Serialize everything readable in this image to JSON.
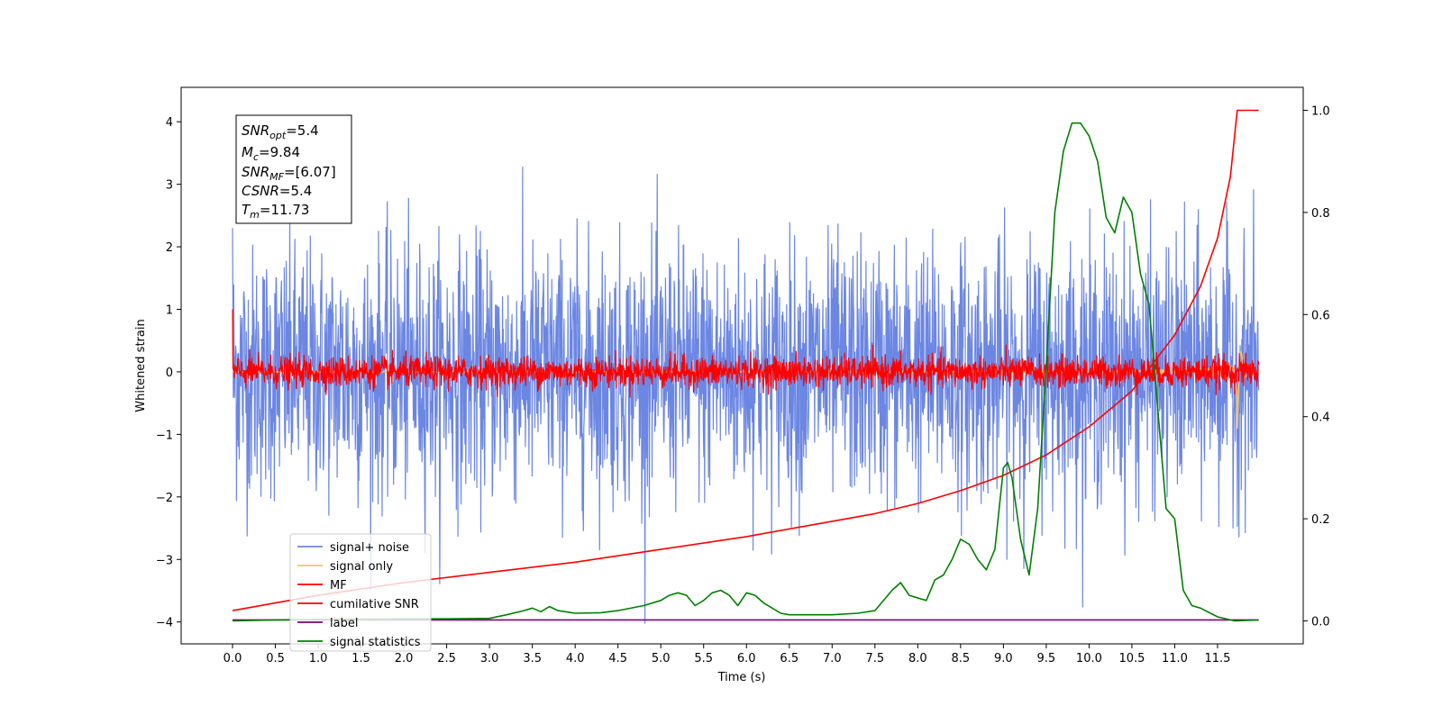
{
  "chart_data": {
    "type": "line",
    "xlabel": "Time (s)",
    "ylabel": "Whitened strain",
    "xlim": [
      -0.6,
      12.5
    ],
    "ylim": [
      -4.35,
      4.55
    ],
    "y2lim": [
      -0.045,
      1.045
    ],
    "xticks": [
      "0.0",
      "0.5",
      "1.0",
      "1.5",
      "2.0",
      "2.5",
      "3.0",
      "3.5",
      "4.0",
      "4.5",
      "5.0",
      "5.5",
      "6.0",
      "6.5",
      "7.0",
      "7.5",
      "8.0",
      "8.5",
      "9.0",
      "9.5",
      "10.0",
      "10.5",
      "11.0",
      "11.5"
    ],
    "yticks": [
      "−4",
      "−3",
      "−2",
      "−1",
      "0",
      "1",
      "2",
      "3",
      "4"
    ],
    "y2ticks": [
      "0.0",
      "0.2",
      "0.4",
      "0.6",
      "0.8",
      "1.0"
    ],
    "grid": false,
    "legend_position": "lower-left",
    "annotation": {
      "snr_opt": {
        "sym": "SNR",
        "sub": "opt",
        "val": "=5.4"
      },
      "mc": {
        "sym": "M",
        "sub": "c",
        "val": "=9.84"
      },
      "snr_mf": {
        "sym": "SNR",
        "sub": "MF",
        "val": "=[6.07]"
      },
      "csnr": {
        "sym": "CSNR",
        "sub": "",
        "val": "=5.4"
      },
      "tm": {
        "sym": "T",
        "sub": "m",
        "val": "=11.73"
      }
    },
    "series": [
      {
        "name": "signal+ noise",
        "color": "#6b86e3",
        "axis": "left",
        "kind": "noise",
        "std": 1.0,
        "x_range": [
          0.0,
          11.98
        ]
      },
      {
        "name": "signal only",
        "color": "#f5c26b",
        "axis": "left",
        "kind": "chirp",
        "x_range": [
          0.0,
          11.98
        ],
        "peak_time": 11.73,
        "peak_amplitude": 1.0
      },
      {
        "name": "MF",
        "color": "#ff0000",
        "axis": "left",
        "kind": "noise",
        "std": 0.12,
        "x_range": [
          0.0,
          11.98
        ]
      },
      {
        "name": "cumilative SNR",
        "color": "#ff0000",
        "axis": "right",
        "x": [
          0.0,
          1.0,
          2.0,
          3.0,
          4.0,
          5.0,
          6.0,
          7.0,
          7.5,
          8.0,
          8.5,
          9.0,
          9.5,
          10.0,
          10.5,
          11.0,
          11.3,
          11.5,
          11.65,
          11.73,
          11.98
        ],
        "values": [
          0.02,
          0.05,
          0.075,
          0.095,
          0.115,
          0.14,
          0.165,
          0.195,
          0.21,
          0.23,
          0.255,
          0.285,
          0.325,
          0.38,
          0.45,
          0.56,
          0.655,
          0.75,
          0.87,
          1.0,
          1.0
        ]
      },
      {
        "name": "label",
        "color": "#800080",
        "axis": "right",
        "x": [
          0.0,
          11.98
        ],
        "values": [
          0.002,
          0.002
        ]
      },
      {
        "name": "signal statistics",
        "color": "#008000",
        "axis": "right",
        "x": [
          0.0,
          0.5,
          1.0,
          2.0,
          2.5,
          3.0,
          3.2,
          3.4,
          3.5,
          3.6,
          3.7,
          3.8,
          4.0,
          4.3,
          4.5,
          4.8,
          5.0,
          5.1,
          5.2,
          5.3,
          5.4,
          5.5,
          5.6,
          5.7,
          5.8,
          5.9,
          6.0,
          6.1,
          6.2,
          6.3,
          6.4,
          6.5,
          6.7,
          7.0,
          7.3,
          7.5,
          7.7,
          7.8,
          7.9,
          8.0,
          8.1,
          8.2,
          8.3,
          8.4,
          8.5,
          8.6,
          8.7,
          8.8,
          8.9,
          9.0,
          9.05,
          9.1,
          9.2,
          9.3,
          9.4,
          9.5,
          9.6,
          9.7,
          9.8,
          9.9,
          10.0,
          10.1,
          10.2,
          10.3,
          10.4,
          10.5,
          10.6,
          10.7,
          10.8,
          10.9,
          11.0,
          11.1,
          11.2,
          11.3,
          11.5,
          11.7,
          11.98
        ],
        "values": [
          0.0,
          0.002,
          0.003,
          0.004,
          0.004,
          0.005,
          0.012,
          0.02,
          0.025,
          0.018,
          0.028,
          0.02,
          0.015,
          0.016,
          0.02,
          0.03,
          0.04,
          0.05,
          0.055,
          0.05,
          0.03,
          0.04,
          0.055,
          0.06,
          0.05,
          0.03,
          0.055,
          0.05,
          0.035,
          0.025,
          0.015,
          0.012,
          0.012,
          0.012,
          0.015,
          0.02,
          0.06,
          0.075,
          0.05,
          0.045,
          0.04,
          0.08,
          0.09,
          0.12,
          0.16,
          0.15,
          0.12,
          0.1,
          0.14,
          0.3,
          0.31,
          0.28,
          0.16,
          0.09,
          0.22,
          0.5,
          0.8,
          0.92,
          0.975,
          0.975,
          0.95,
          0.9,
          0.79,
          0.76,
          0.83,
          0.8,
          0.68,
          0.62,
          0.42,
          0.22,
          0.2,
          0.06,
          0.03,
          0.025,
          0.008,
          0.0,
          0.002
        ]
      }
    ]
  }
}
